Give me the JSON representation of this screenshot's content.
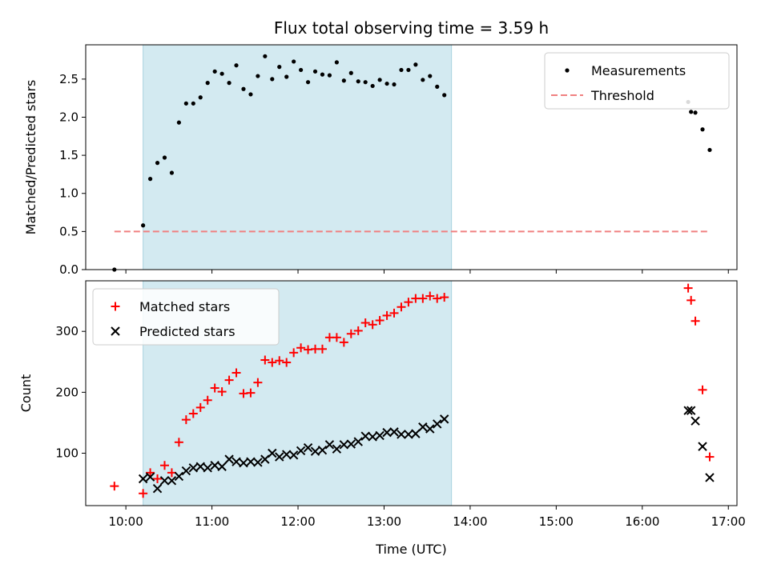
{
  "chart_data": [
    {
      "type": "scatter",
      "title": "Flux total observing time = 3.59 h",
      "xlabel": "",
      "ylabel": "Matched/Predicted stars",
      "xlim": [
        "09:32",
        "17:06"
      ],
      "ylim": [
        0,
        2.95
      ],
      "x_ticks": [
        "10:00",
        "11:00",
        "12:00",
        "13:00",
        "14:00",
        "15:00",
        "16:00",
        "17:00"
      ],
      "y_ticks": [
        "0.0",
        "0.5",
        "1.0",
        "1.5",
        "2.0",
        "2.5"
      ],
      "shaded_interval": {
        "from": "10:12",
        "to": "13:47",
        "color": "#d3eaf1"
      },
      "legend": {
        "position": "upper right"
      },
      "series": [
        {
          "name": "Measurements",
          "marker": "dot",
          "color": "#000000",
          "points": [
            [
              "09:52",
              0.0
            ],
            [
              "10:12",
              0.58
            ],
            [
              "10:17",
              1.19
            ],
            [
              "10:22",
              1.4
            ],
            [
              "10:27",
              1.47
            ],
            [
              "10:32",
              1.27
            ],
            [
              "10:37",
              1.93
            ],
            [
              "10:42",
              2.18
            ],
            [
              "10:47",
              2.18
            ],
            [
              "10:52",
              2.26
            ],
            [
              "10:57",
              2.45
            ],
            [
              "11:02",
              2.6
            ],
            [
              "11:07",
              2.57
            ],
            [
              "11:12",
              2.45
            ],
            [
              "11:17",
              2.68
            ],
            [
              "11:22",
              2.37
            ],
            [
              "11:27",
              2.3
            ],
            [
              "11:32",
              2.54
            ],
            [
              "11:37",
              2.8
            ],
            [
              "11:42",
              2.5
            ],
            [
              "11:47",
              2.66
            ],
            [
              "11:52",
              2.53
            ],
            [
              "11:57",
              2.73
            ],
            [
              "12:02",
              2.62
            ],
            [
              "12:07",
              2.46
            ],
            [
              "12:12",
              2.6
            ],
            [
              "12:17",
              2.56
            ],
            [
              "12:22",
              2.55
            ],
            [
              "12:27",
              2.72
            ],
            [
              "12:32",
              2.48
            ],
            [
              "12:37",
              2.58
            ],
            [
              "12:42",
              2.47
            ],
            [
              "12:47",
              2.46
            ],
            [
              "12:52",
              2.41
            ],
            [
              "12:57",
              2.49
            ],
            [
              "13:02",
              2.44
            ],
            [
              "13:07",
              2.43
            ],
            [
              "13:12",
              2.62
            ],
            [
              "13:17",
              2.62
            ],
            [
              "13:22",
              2.69
            ],
            [
              "13:27",
              2.49
            ],
            [
              "13:32",
              2.54
            ],
            [
              "13:37",
              2.4
            ],
            [
              "13:42",
              2.29
            ],
            [
              "16:32",
              2.2
            ],
            [
              "16:34",
              2.07
            ],
            [
              "16:37",
              2.06
            ],
            [
              "16:42",
              1.84
            ],
            [
              "16:47",
              1.57
            ]
          ]
        },
        {
          "name": "Threshold",
          "marker": "dashed-line",
          "color": "#f08080",
          "points": [
            [
              "09:52",
              0.5
            ],
            [
              "16:47",
              0.5
            ]
          ]
        }
      ]
    },
    {
      "type": "scatter",
      "title": "",
      "xlabel": "Time (UTC)",
      "ylabel": "Count",
      "xlim": [
        "09:32",
        "17:06"
      ],
      "ylim": [
        14,
        383
      ],
      "x_ticks": [
        "10:00",
        "11:00",
        "12:00",
        "13:00",
        "14:00",
        "15:00",
        "16:00",
        "17:00"
      ],
      "y_ticks": [
        "100",
        "200",
        "300"
      ],
      "shaded_interval": {
        "from": "10:12",
        "to": "13:47",
        "color": "#d3eaf1"
      },
      "legend": {
        "position": "upper left"
      },
      "series": [
        {
          "name": "Matched stars",
          "marker": "plus",
          "color": "#ff0000",
          "points": [
            [
              "09:52",
              46
            ],
            [
              "10:12",
              34
            ],
            [
              "10:17",
              68
            ],
            [
              "10:22",
              58
            ],
            [
              "10:27",
              80
            ],
            [
              "10:32",
              68
            ],
            [
              "10:37",
              118
            ],
            [
              "10:42",
              155
            ],
            [
              "10:47",
              165
            ],
            [
              "10:52",
              175
            ],
            [
              "10:57",
              187
            ],
            [
              "11:02",
              207
            ],
            [
              "11:07",
              201
            ],
            [
              "11:12",
              220
            ],
            [
              "11:17",
              232
            ],
            [
              "11:22",
              198
            ],
            [
              "11:27",
              199
            ],
            [
              "11:32",
              216
            ],
            [
              "11:37",
              253
            ],
            [
              "11:42",
              249
            ],
            [
              "11:47",
              252
            ],
            [
              "11:52",
              249
            ],
            [
              "11:57",
              265
            ],
            [
              "12:02",
              273
            ],
            [
              "12:07",
              270
            ],
            [
              "12:12",
              271
            ],
            [
              "12:17",
              271
            ],
            [
              "12:22",
              290
            ],
            [
              "12:27",
              290
            ],
            [
              "12:32",
              282
            ],
            [
              "12:37",
              296
            ],
            [
              "12:42",
              301
            ],
            [
              "12:47",
              314
            ],
            [
              "12:52",
              311
            ],
            [
              "12:57",
              318
            ],
            [
              "13:02",
              326
            ],
            [
              "13:07",
              330
            ],
            [
              "13:12",
              340
            ],
            [
              "13:17",
              348
            ],
            [
              "13:22",
              354
            ],
            [
              "13:27",
              354
            ],
            [
              "13:32",
              358
            ],
            [
              "13:37",
              354
            ],
            [
              "13:42",
              356
            ],
            [
              "16:32",
              371
            ],
            [
              "16:34",
              351
            ],
            [
              "16:37",
              317
            ],
            [
              "16:42",
              204
            ],
            [
              "16:47",
              94
            ]
          ]
        },
        {
          "name": "Predicted stars",
          "marker": "cross",
          "color": "#000000",
          "points": [
            [
              "10:12",
              58
            ],
            [
              "10:17",
              61
            ],
            [
              "10:22",
              42
            ],
            [
              "10:27",
              55
            ],
            [
              "10:32",
              55
            ],
            [
              "10:37",
              62
            ],
            [
              "10:42",
              71
            ],
            [
              "10:47",
              76
            ],
            [
              "10:52",
              78
            ],
            [
              "10:57",
              76
            ],
            [
              "11:02",
              80
            ],
            [
              "11:07",
              78
            ],
            [
              "11:12",
              90
            ],
            [
              "11:17",
              86
            ],
            [
              "11:22",
              84
            ],
            [
              "11:27",
              86
            ],
            [
              "11:32",
              85
            ],
            [
              "11:37",
              90
            ],
            [
              "11:42",
              100
            ],
            [
              "11:47",
              94
            ],
            [
              "11:52",
              98
            ],
            [
              "11:57",
              97
            ],
            [
              "12:02",
              104
            ],
            [
              "12:07",
              109
            ],
            [
              "12:12",
              103
            ],
            [
              "12:17",
              105
            ],
            [
              "12:22",
              114
            ],
            [
              "12:27",
              107
            ],
            [
              "12:32",
              114
            ],
            [
              "12:37",
              115
            ],
            [
              "12:42",
              119
            ],
            [
              "12:47",
              128
            ],
            [
              "12:52",
              127
            ],
            [
              "12:57",
              129
            ],
            [
              "13:02",
              134
            ],
            [
              "13:07",
              135
            ],
            [
              "13:12",
              131
            ],
            [
              "13:17",
              131
            ],
            [
              "13:22",
              132
            ],
            [
              "13:27",
              143
            ],
            [
              "13:32",
              140
            ],
            [
              "13:37",
              148
            ],
            [
              "13:42",
              156
            ],
            [
              "16:32",
              170
            ],
            [
              "16:34",
              170
            ],
            [
              "16:37",
              153
            ],
            [
              "16:42",
              111
            ],
            [
              "16:47",
              60
            ]
          ]
        }
      ]
    }
  ]
}
